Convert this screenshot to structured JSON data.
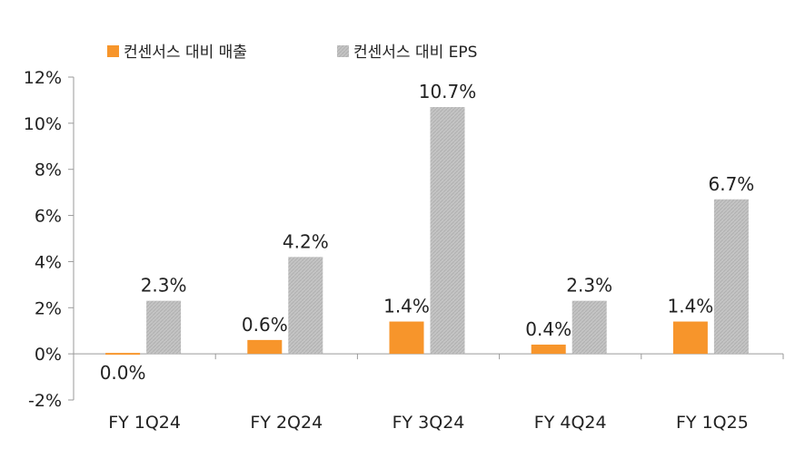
{
  "chart_data": {
    "type": "bar",
    "categories": [
      "FY 1Q24",
      "FY 2Q24",
      "FY 3Q24",
      "FY 4Q24",
      "FY 1Q25"
    ],
    "series": [
      {
        "name": "컨센서스 대비 매출",
        "color": "#F7952B",
        "values": [
          0.0,
          0.6,
          1.4,
          0.4,
          1.4
        ],
        "labels": [
          "0.0%",
          "0.6%",
          "1.4%",
          "0.4%",
          "1.4%"
        ]
      },
      {
        "name": "컨센서스 대비 EPS",
        "color": "#BFBFBF",
        "pattern": "hatched",
        "values": [
          2.3,
          4.2,
          10.7,
          2.3,
          6.7
        ],
        "labels": [
          "2.3%",
          "4.2%",
          "10.7%",
          "2.3%",
          "6.7%"
        ]
      }
    ],
    "yticks": [
      "12%",
      "10%",
      "8%",
      "6%",
      "4%",
      "2%",
      "0%",
      "-2%"
    ],
    "ylim": [
      -2,
      12
    ],
    "legend": "top",
    "grid": false
  }
}
